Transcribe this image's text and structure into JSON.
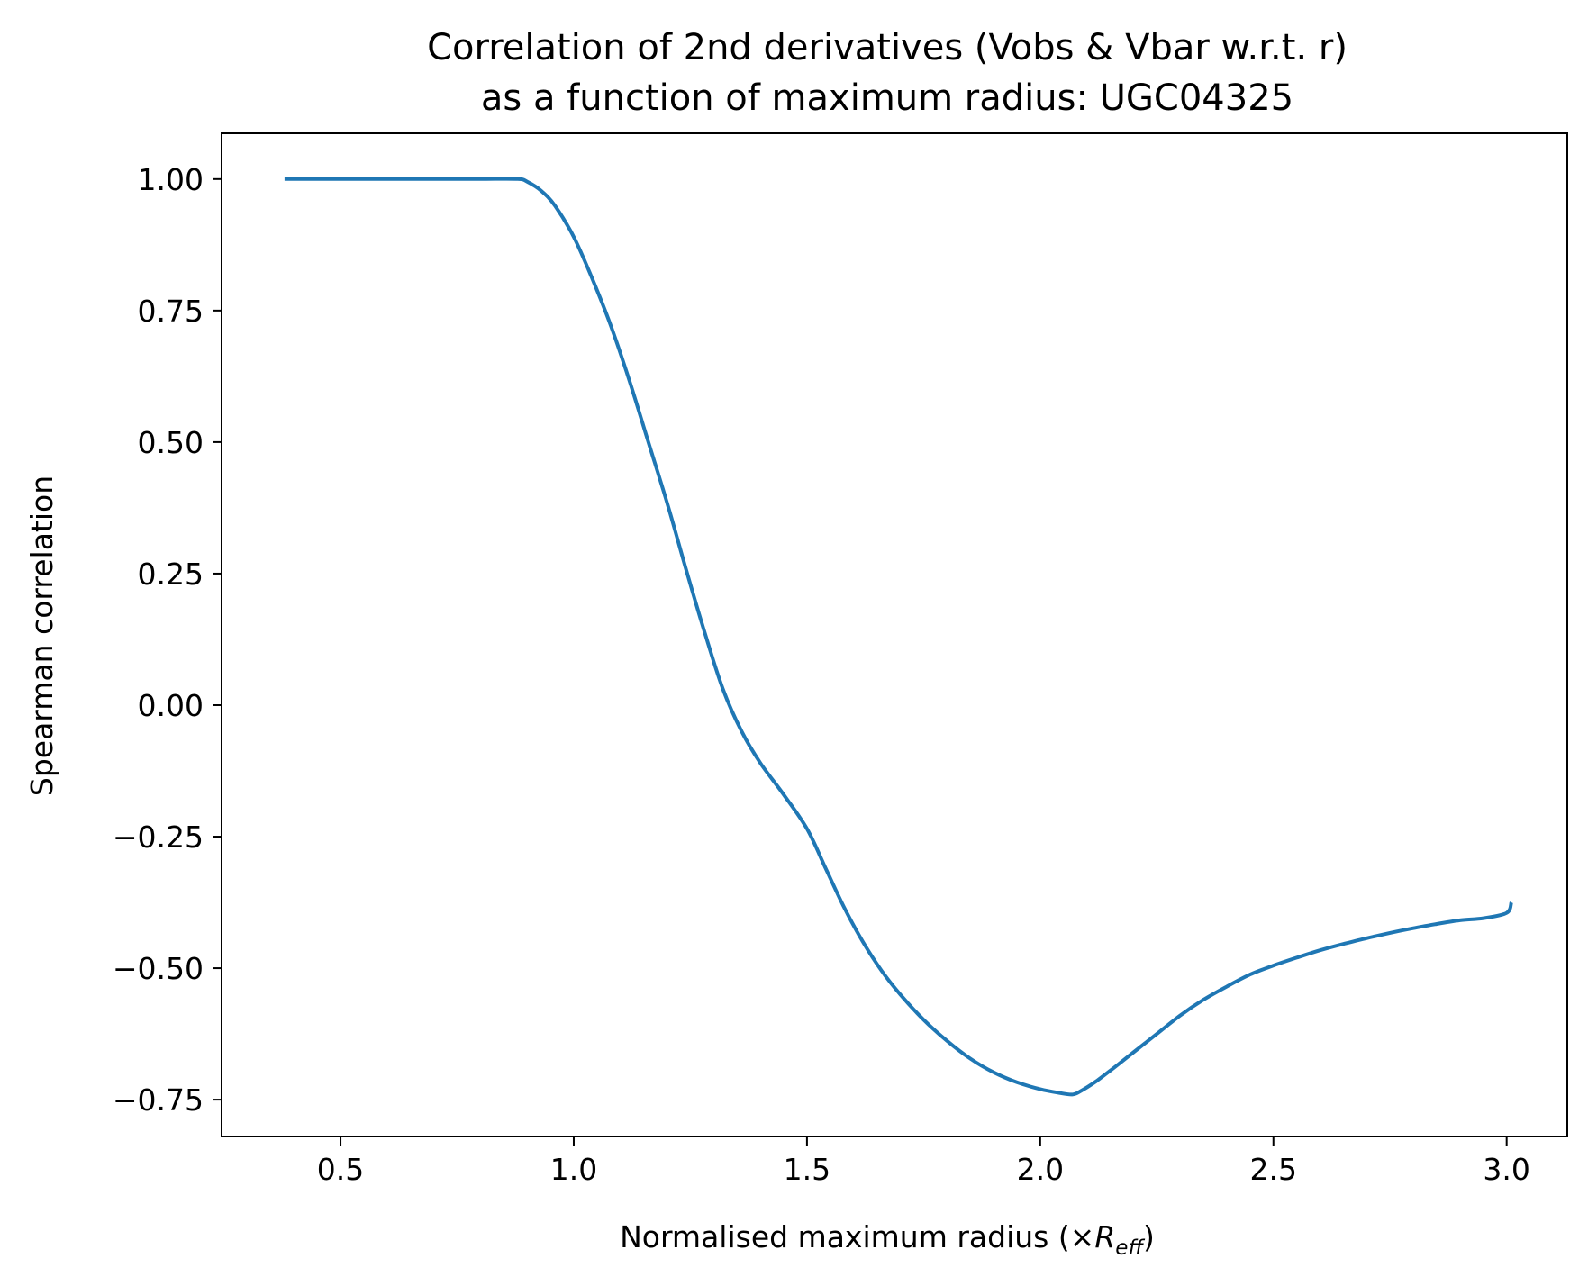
{
  "chart_data": {
    "type": "line",
    "title_lines": [
      "Correlation of 2nd derivatives (Vobs & Vbar w.r.t. r)",
      "as a function of maximum radius: UGC04325"
    ],
    "xlabel": {
      "prefix": "Normalised maximum radius (×",
      "symbol": "R",
      "subscript": "eff",
      "suffix": ")"
    },
    "ylabel": "Spearman correlation",
    "xlim": [
      0.245,
      3.13
    ],
    "ylim": [
      -0.82,
      1.087
    ],
    "xticks": [
      {
        "value": 0.5,
        "label": "0.5"
      },
      {
        "value": 1.0,
        "label": "1.0"
      },
      {
        "value": 1.5,
        "label": "1.5"
      },
      {
        "value": 2.0,
        "label": "2.0"
      },
      {
        "value": 2.5,
        "label": "2.5"
      },
      {
        "value": 3.0,
        "label": "3.0"
      }
    ],
    "yticks": [
      {
        "value": 1.0,
        "label": "1.00"
      },
      {
        "value": 0.75,
        "label": "0.75"
      },
      {
        "value": 0.5,
        "label": "0.50"
      },
      {
        "value": 0.25,
        "label": "0.25"
      },
      {
        "value": 0.0,
        "label": "0.00"
      },
      {
        "value": -0.25,
        "label": "−0.25"
      },
      {
        "value": -0.5,
        "label": "−0.50"
      },
      {
        "value": -0.75,
        "label": "−0.75"
      }
    ],
    "grid": false,
    "series": [
      {
        "color": "#1f77b4",
        "x": [
          0.38,
          0.5,
          0.6,
          0.7,
          0.8,
          0.88,
          0.9,
          0.93,
          0.96,
          1.0,
          1.04,
          1.08,
          1.12,
          1.16,
          1.2,
          1.24,
          1.28,
          1.32,
          1.36,
          1.4,
          1.45,
          1.5,
          1.54,
          1.58,
          1.62,
          1.66,
          1.7,
          1.75,
          1.8,
          1.85,
          1.9,
          1.95,
          2.0,
          2.04,
          2.07,
          2.09,
          2.12,
          2.16,
          2.2,
          2.25,
          2.3,
          2.35,
          2.4,
          2.45,
          2.5,
          2.55,
          2.6,
          2.65,
          2.7,
          2.75,
          2.8,
          2.85,
          2.9,
          2.95,
          3.0,
          3.01
        ],
        "y": [
          1.0,
          1.0,
          1.0,
          1.0,
          1.0,
          1.0,
          0.995,
          0.978,
          0.949,
          0.89,
          0.81,
          0.72,
          0.615,
          0.5,
          0.385,
          0.26,
          0.14,
          0.03,
          -0.05,
          -0.11,
          -0.17,
          -0.235,
          -0.31,
          -0.385,
          -0.45,
          -0.505,
          -0.55,
          -0.598,
          -0.638,
          -0.672,
          -0.698,
          -0.717,
          -0.73,
          -0.737,
          -0.74,
          -0.732,
          -0.715,
          -0.688,
          -0.66,
          -0.625,
          -0.59,
          -0.56,
          -0.535,
          -0.512,
          -0.495,
          -0.48,
          -0.466,
          -0.454,
          -0.443,
          -0.433,
          -0.424,
          -0.416,
          -0.409,
          -0.405,
          -0.395,
          -0.375
        ]
      }
    ]
  }
}
